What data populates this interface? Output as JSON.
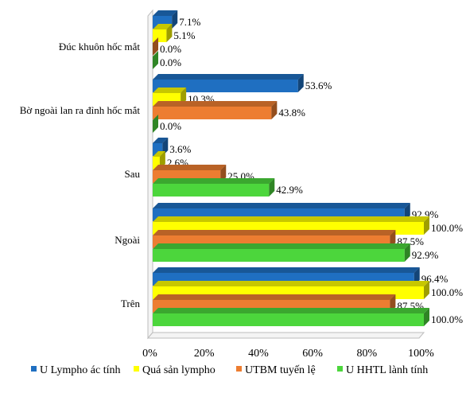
{
  "chart_data": {
    "type": "bar",
    "orientation": "horizontal",
    "three_d": true,
    "title": "",
    "xlabel": "",
    "ylabel": "",
    "xlim": [
      0,
      100
    ],
    "x_ticks": [
      "0%",
      "20%",
      "40%",
      "60%",
      "80%",
      "100%"
    ],
    "grid": false,
    "legend_position": "bottom",
    "categories": [
      "Đúc khuôn hốc mắt",
      "Bờ ngoài lan ra đỉnh hốc mắt",
      "Sau",
      "Ngoài",
      "Trên"
    ],
    "series": [
      {
        "name": "U Lympho ác tính",
        "color": "#1f6fc1",
        "values": [
          7.1,
          53.6,
          3.6,
          92.9,
          96.4
        ],
        "labels": [
          "7.1%",
          "53.6%",
          "3.6%",
          "92.9%",
          "96.4%"
        ]
      },
      {
        "name": "Quá sản lympho",
        "color": "#ffff00",
        "values": [
          5.1,
          10.3,
          2.6,
          100.0,
          100.0
        ],
        "labels": [
          "5.1%",
          "10.3%",
          "2.6%",
          "100.0%",
          "100.0%"
        ]
      },
      {
        "name": "UTBM tuyến lệ",
        "color": "#ed7d31",
        "values": [
          0.0,
          43.8,
          25.0,
          87.5,
          87.5
        ],
        "labels": [
          "0.0%",
          "43.8%",
          "25.0%",
          "87.5%",
          "87.5%"
        ]
      },
      {
        "name": "U HHTL lành tính",
        "color": "#4cd63c",
        "values": [
          0.0,
          0.0,
          42.9,
          92.9,
          100.0
        ],
        "labels": [
          "0.0%",
          "0.0%",
          "42.9%",
          "92.9%",
          "100.0%"
        ]
      }
    ]
  }
}
